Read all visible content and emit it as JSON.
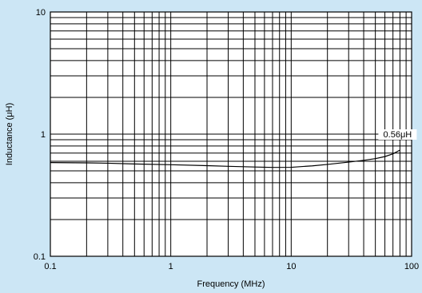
{
  "chart_data": {
    "type": "line",
    "xlabel": "Frequency (MHz)",
    "ylabel": "Inductance (μH)",
    "x_scale": "log",
    "y_scale": "log",
    "xlim": [
      0.1,
      100
    ],
    "ylim": [
      0.1,
      10
    ],
    "x_ticks": [
      "0.1",
      "1",
      "10",
      "100"
    ],
    "y_ticks": [
      "0.1",
      "1",
      "10"
    ],
    "grid": true,
    "series": [
      {
        "x": [
          0.1,
          0.2,
          0.3,
          0.5,
          1,
          2,
          3,
          5,
          7,
          10,
          15,
          20,
          30,
          40,
          50,
          60,
          70,
          80
        ],
        "y": [
          0.585,
          0.582,
          0.578,
          0.57,
          0.562,
          0.552,
          0.545,
          0.538,
          0.534,
          0.535,
          0.55,
          0.565,
          0.59,
          0.61,
          0.63,
          0.655,
          0.69,
          0.74
        ]
      }
    ],
    "annotations": [
      {
        "text": "0.56μH",
        "x": 80,
        "y": 1
      }
    ],
    "colors": {
      "background": "#cce6f5",
      "plot": "#ffffff",
      "line": "#000000"
    }
  }
}
